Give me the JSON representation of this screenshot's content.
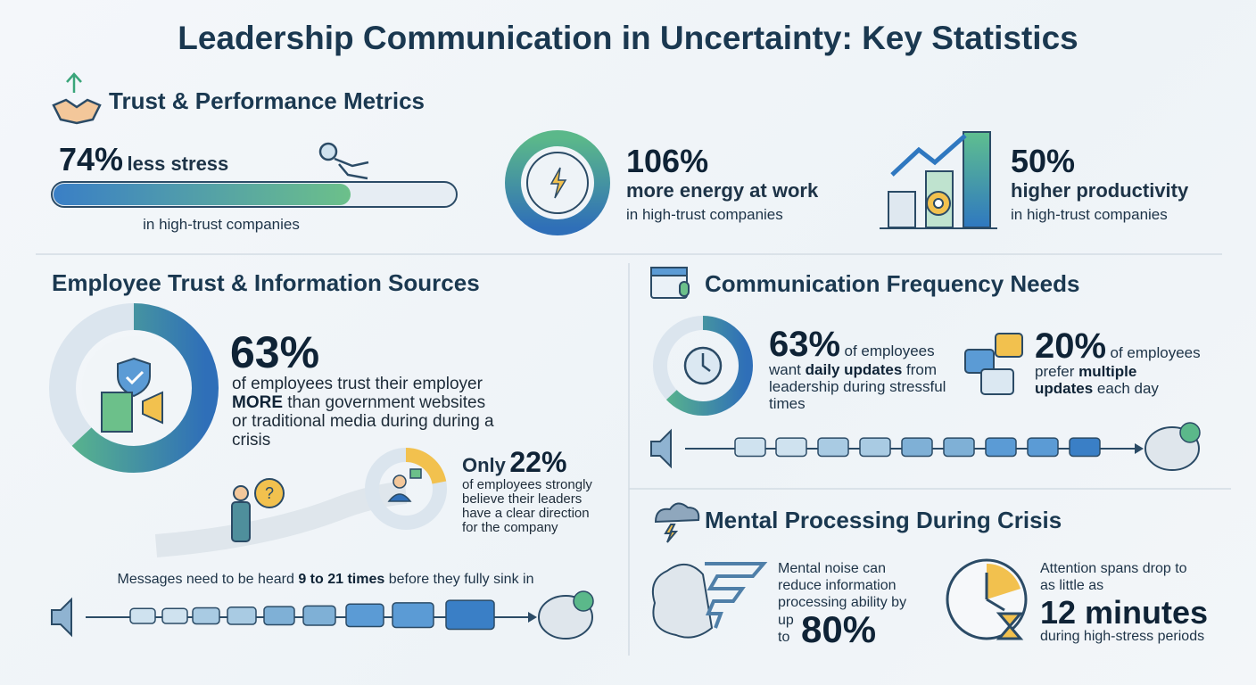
{
  "title": "Leadership Communication in Uncertainty: Key Statistics",
  "trust_performance": {
    "heading": "Trust & Performance Metrics",
    "stats": [
      {
        "value": 74,
        "label": "74%",
        "text": "less stress",
        "sub": "in high-trust companies"
      },
      {
        "label": "106%",
        "text": "more energy at work",
        "sub": "in high-trust companies"
      },
      {
        "label": "50%",
        "text": "higher productivity",
        "sub": "in high-trust companies"
      }
    ]
  },
  "employee_trust": {
    "heading": "Employee Trust & Information Sources",
    "main": {
      "value": 63,
      "label": "63%",
      "before": "of employees trust their employer",
      "emphasis": "MORE",
      "after": "than government websites or traditional media during during a crisis"
    },
    "secondary": {
      "prefix": "Only",
      "value": 22,
      "label": "22%",
      "text": "of employees strongly believe their leaders have a clear direction for the company"
    },
    "messages": {
      "before": "Messages need to be heard",
      "emphasis": "9 to 21 times",
      "after": "before they fully sink in"
    }
  },
  "communication_frequency": {
    "heading": "Communication Frequency Needs",
    "daily": {
      "value": 63,
      "label": "63%",
      "of": "of employees",
      "verb": "want",
      "emphasis": "daily updates",
      "after": "from leadership during stressful times"
    },
    "multiple": {
      "label": "20%",
      "of": "of employees",
      "verb": "prefer",
      "emphasis": "multiple updates",
      "after": "each day"
    }
  },
  "mental_processing": {
    "heading": "Mental Processing During Crisis",
    "noise": {
      "text": "Mental noise can reduce information processing ability by",
      "up": "up",
      "to": "to",
      "label": "80%"
    },
    "attention": {
      "text": "Attention spans drop to as little as",
      "label": "12 minutes",
      "sub": "during high-stress periods"
    }
  }
}
